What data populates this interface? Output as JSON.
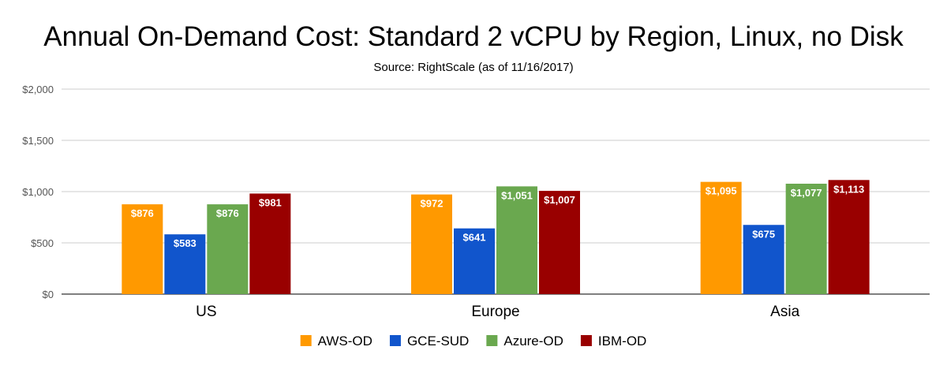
{
  "chart_data": {
    "type": "bar",
    "title": "Annual On-Demand Cost: Standard 2 vCPU by Region, Linux, no Disk",
    "subtitle": "Source: RightScale (as of 11/16/2017)",
    "xlabel": "",
    "ylabel": "",
    "categories": [
      "US",
      "Europe",
      "Asia"
    ],
    "series": [
      {
        "name": "AWS-OD",
        "color": "#FF9900",
        "values": [
          876,
          972,
          1095
        ],
        "labels": [
          "$876",
          "$972",
          "$1,095"
        ]
      },
      {
        "name": "GCE-SUD",
        "color": "#1155CC",
        "values": [
          583,
          641,
          675
        ],
        "labels": [
          "$583",
          "$641",
          "$675"
        ]
      },
      {
        "name": "Azure-OD",
        "color": "#6AA84F",
        "values": [
          876,
          1051,
          1077
        ],
        "labels": [
          "$876",
          "$1,051",
          "$1,077"
        ]
      },
      {
        "name": "IBM-OD",
        "color": "#990000",
        "values": [
          981,
          1007,
          1113
        ],
        "labels": [
          "$981",
          "$1,007",
          "$1,113"
        ]
      }
    ],
    "ylim": [
      0,
      2000
    ],
    "yticks": [
      0,
      500,
      1000,
      1500,
      2000
    ],
    "ytick_labels": [
      "$0",
      "$500",
      "$1,000",
      "$1,500",
      "$2,000"
    ],
    "grid": true,
    "legend_position": "bottom"
  }
}
